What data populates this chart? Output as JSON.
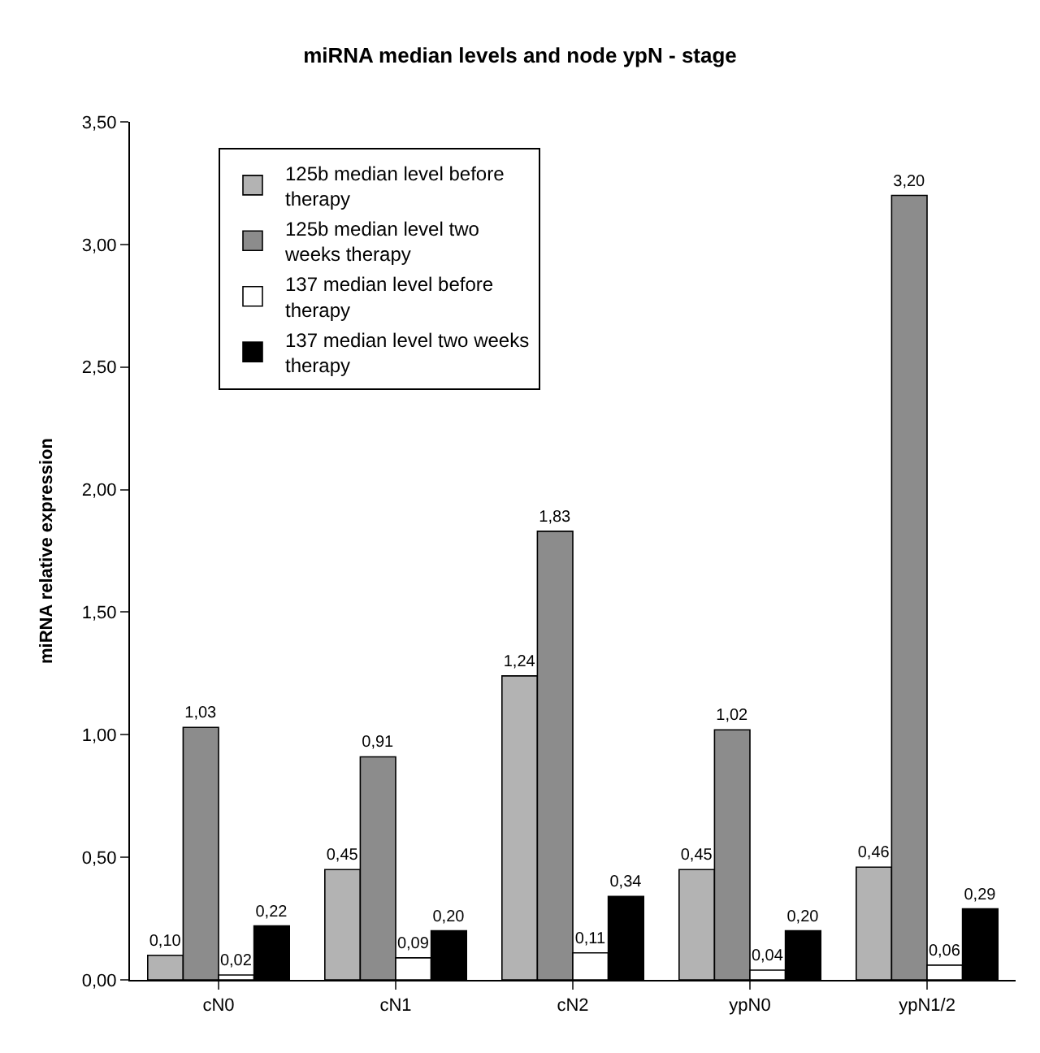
{
  "chart_data": {
    "type": "bar",
    "title": "miRNA median levels and node ypN - stage",
    "ylabel": "miRNA relative expression",
    "categories": [
      "cN0",
      "cN1",
      "cN2",
      "ypN0",
      "ypN1/2"
    ],
    "series": [
      {
        "name": "125b median level before therapy",
        "color": "#b3b3b3",
        "values": [
          0.1,
          0.45,
          1.24,
          0.45,
          0.46
        ],
        "value_labels": [
          "0,10",
          "0,45",
          "1,24",
          "0,45",
          "0,46"
        ]
      },
      {
        "name": "125b median level two weeks therapy",
        "color": "#8c8c8c",
        "values": [
          1.03,
          0.91,
          1.83,
          1.02,
          3.2
        ],
        "value_labels": [
          "1,03",
          "0,91",
          "1,83",
          "1,02",
          "3,20"
        ]
      },
      {
        "name": "137 median level before therapy",
        "color": "#ffffff",
        "values": [
          0.02,
          0.09,
          0.11,
          0.04,
          0.06
        ],
        "value_labels": [
          "0,02",
          "0,09",
          "0,11",
          "0,04",
          "0,06"
        ]
      },
      {
        "name": "137 median level two weeks therapy",
        "color": "#000000",
        "values": [
          0.22,
          0.2,
          0.34,
          0.2,
          0.29
        ],
        "value_labels": [
          "0,22",
          "0,20",
          "0,34",
          "0,20",
          "0,29"
        ]
      }
    ],
    "ylim": [
      0,
      3.5
    ],
    "yticks": [
      {
        "value": 0,
        "label": "0,00"
      },
      {
        "value": 0.5,
        "label": "0,50"
      },
      {
        "value": 1,
        "label": "1,00"
      },
      {
        "value": 1.5,
        "label": "1,50"
      },
      {
        "value": 2,
        "label": "2,00"
      },
      {
        "value": 2.5,
        "label": "2,50"
      },
      {
        "value": 3,
        "label": "3,00"
      },
      {
        "value": 3.5,
        "label": "3,50"
      }
    ],
    "legend": "top left"
  }
}
